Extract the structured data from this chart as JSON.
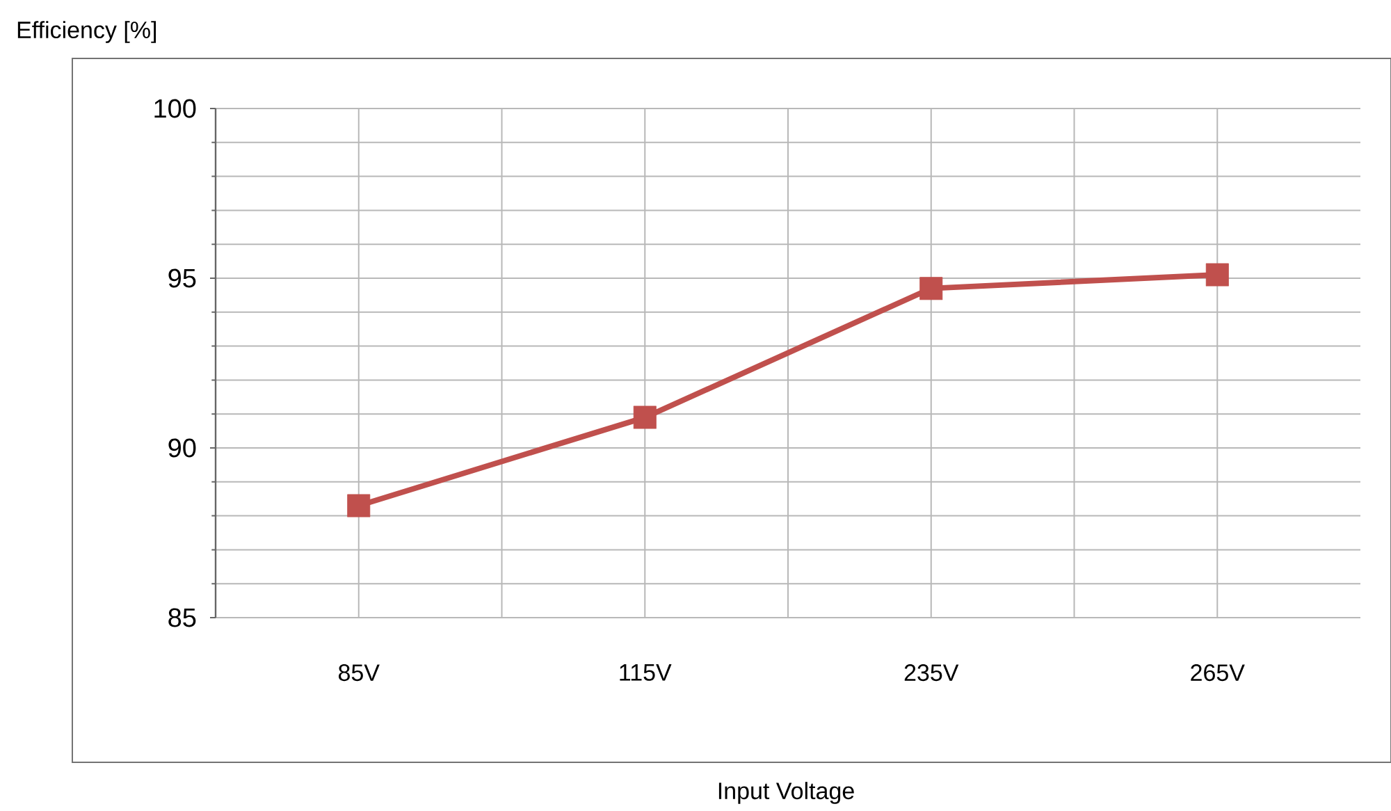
{
  "chart_data": {
    "type": "line",
    "xlabel": "Input Voltage",
    "ylabel": "Efficiency [%]",
    "categories": [
      "85V",
      "115V",
      "235V",
      "265V"
    ],
    "series": [
      {
        "color": "#c0504d",
        "values": [
          88.3,
          90.9,
          94.7,
          95.1
        ]
      }
    ],
    "ylim": [
      85,
      100
    ],
    "yticks": [
      85,
      90,
      95,
      100
    ],
    "grid": true,
    "marker": "square"
  }
}
